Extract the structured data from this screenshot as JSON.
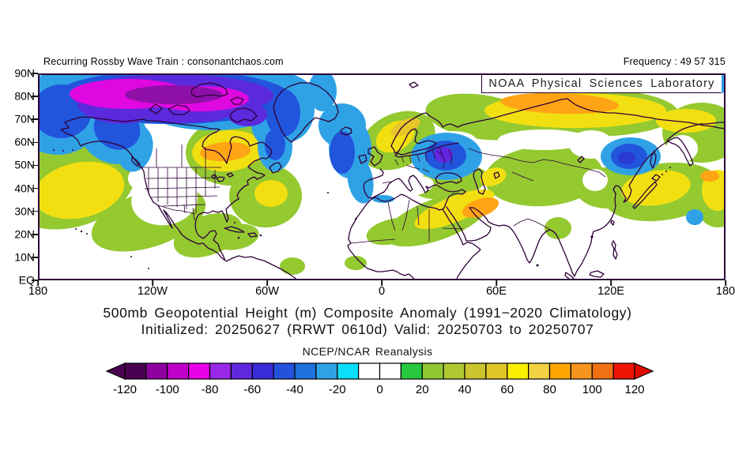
{
  "header": {
    "left_note": "Recurring Rossby Wave Train : consonantchaos.com",
    "frequency_note": "Frequency : 49 57 315",
    "lab_label": "NOAA Physical Sciences Laboratory"
  },
  "titles": {
    "line1": "500mb Geopotential Height (m) Composite Anomaly (1991−2020 Climatology)",
    "line2": "Initialized: 20250627 (RRWT 0610d) Valid: 20250703 to 20250707",
    "source_label": "NCEP/NCAR Reanalysis"
  },
  "axes": {
    "lat_labels": [
      "90N",
      "80N",
      "70N",
      "60N",
      "50N",
      "40N",
      "30N",
      "20N",
      "10N",
      "EQ"
    ],
    "lon_labels": [
      "180",
      "120W",
      "60W",
      "0",
      "60E",
      "120E",
      "180"
    ]
  },
  "colorbar": {
    "tick_labels": [
      "-120",
      "-100",
      "-80",
      "-60",
      "-40",
      "-20",
      "0",
      "20",
      "40",
      "60",
      "80",
      "100",
      "120"
    ],
    "segment_colors": [
      "#4A0050",
      "#8E00A0",
      "#C000C8",
      "#E800E8",
      "#9A28E8",
      "#6228E0",
      "#3A2CD8",
      "#2352DC",
      "#1F72DC",
      "#2FA2E6",
      "#0ADEF8",
      "#FFFFFF",
      "#FFFFFF",
      "#28C83E",
      "#90C832",
      "#B0C832",
      "#CCC42E",
      "#E2C626",
      "#FAF000",
      "#F2D243",
      "#FFA500",
      "#F7941E",
      "#F07014",
      "#EE1406"
    ],
    "left_arrow_color": "#4A0050",
    "right_arrow_color": "#DD0A00"
  },
  "map_palette": {
    "coastline": "#2E0038",
    "weak_negative": "#2FA2E6",
    "moderate_negative": "#2155DC",
    "strong_negative": "#5A2ADC",
    "severe_negative": "#E008E0",
    "extreme_negative": "#8E10A8",
    "cell_core_violet": "#6228E0",
    "cell_core_navy": "#2A3BD4",
    "weak_positive": "#94C930",
    "moderate_positive": "#F2DF12",
    "deep_positive": "#E8C62A",
    "strong_positive": "#FFA414",
    "white_gap": "#FFFFFF"
  },
  "chart_data": {
    "type": "heatmap",
    "title": "500mb Geopotential Height (m) Composite Anomaly (1991−2020 Climatology)",
    "subtitle": "Initialized: 20250627 (RRWT 0610d) Valid: 20250703 to 20250707",
    "source": "NCEP/NCAR Reanalysis",
    "variable": "500mb geopotential height composite anomaly",
    "units": "m",
    "lat_ticks": [
      "90N",
      "80N",
      "70N",
      "60N",
      "50N",
      "40N",
      "30N",
      "20N",
      "10N",
      "EQ"
    ],
    "lon_ticks": [
      "180",
      "120W",
      "60W",
      "0",
      "60E",
      "120E",
      "180"
    ],
    "colorbar_ticks": [
      -120,
      -100,
      -80,
      -60,
      -40,
      -20,
      0,
      20,
      40,
      60,
      80,
      100,
      120
    ],
    "colorbar_segment_step": 10,
    "shading_starts_at_abs": 20,
    "anomaly_centers": [
      {
        "region": "Arctic Canada / Beaufort Sea",
        "lon": "115W",
        "lat": "80N",
        "value_m": -110
      },
      {
        "region": "Gulf of Alaska / BC coast",
        "lon": "140W",
        "lat": "57N",
        "value_m": -45
      },
      {
        "region": "Labrador Sea / Newfoundland",
        "lon": "55W",
        "lat": "52N",
        "value_m": -45
      },
      {
        "region": "Northeast Atlantic trough (Iceland to Iberia)",
        "lon": "20W",
        "lat": "55N",
        "value_m": -50
      },
      {
        "region": "Eastern Europe / western Russia",
        "lon": "33E",
        "lat": "53N",
        "value_m": -70
      },
      {
        "region": "Amur / northeast Asia",
        "lon": "128E",
        "lat": "52N",
        "value_m": -55
      },
      {
        "region": "Subtropical northwest Pacific spot",
        "lon": "164E",
        "lat": "27N",
        "value_m": -25
      },
      {
        "region": "Alboran Sea / Gibraltar",
        "lon": "3W",
        "lat": "35N",
        "value_m": -25
      },
      {
        "region": "Central North Pacific ridge",
        "lon": "175W",
        "lat": "40N",
        "value_m": 50
      },
      {
        "region": "Hudson Bay / Quebec ridge",
        "lon": "82W",
        "lat": "56N",
        "value_m": 90
      },
      {
        "region": "Western Atlantic ridge",
        "lon": "58W",
        "lat": "38N",
        "value_m": 45
      },
      {
        "region": "Scandinavia / North Sea ridge",
        "lon": "8E",
        "lat": "62N",
        "value_m": 55
      },
      {
        "region": "Arctic Siberia ridge",
        "lon": "80E",
        "lat": "76N",
        "value_m": 90
      },
      {
        "region": "Arabian Peninsula / Egypt",
        "lon": "45E",
        "lat": "25N",
        "value_m": 85
      },
      {
        "region": "Northwest Pacific / east of Japan",
        "lon": "150E",
        "lat": "43N",
        "value_m": 85
      }
    ]
  }
}
